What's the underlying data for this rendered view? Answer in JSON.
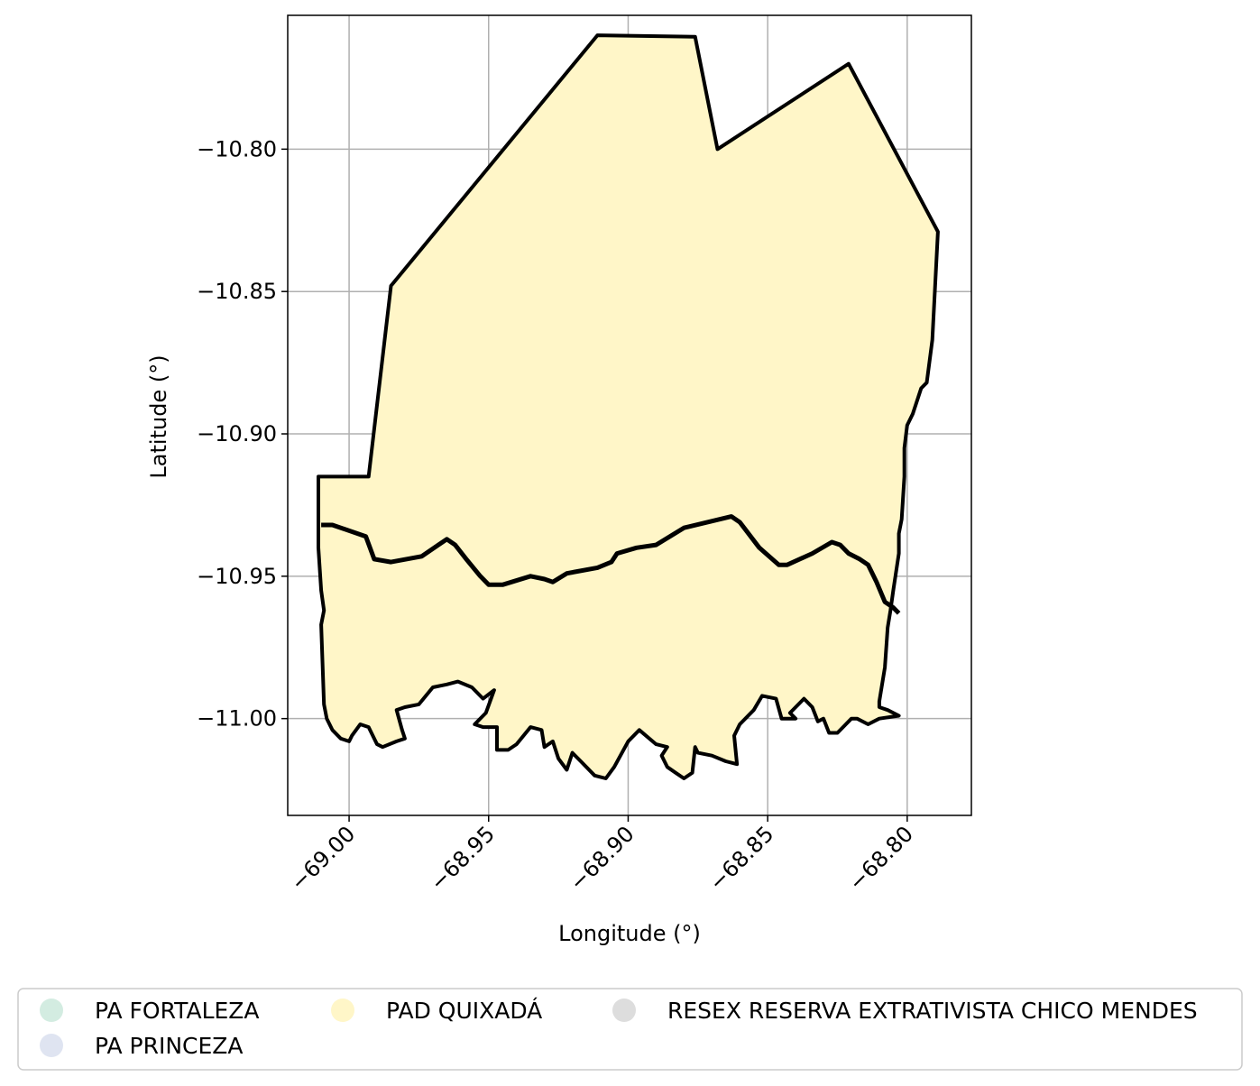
{
  "chart_data": {
    "type": "map",
    "xlabel": "Longitude (°)",
    "ylabel": "Latitude (°)",
    "xlim": [
      -69.022,
      -68.777
    ],
    "ylim": [
      -11.034,
      -10.753
    ],
    "grid": true,
    "x_ticks": [
      {
        "value": -69.0,
        "label": "−69.00"
      },
      {
        "value": -68.95,
        "label": "−68.95"
      },
      {
        "value": -68.9,
        "label": "−68.90"
      },
      {
        "value": -68.85,
        "label": "−68.85"
      },
      {
        "value": -68.8,
        "label": "−68.80"
      }
    ],
    "y_ticks": [
      {
        "value": -10.8,
        "label": "−10.80"
      },
      {
        "value": -10.85,
        "label": "−10.85"
      },
      {
        "value": -10.9,
        "label": "−10.90"
      },
      {
        "value": -10.95,
        "label": "−10.95"
      },
      {
        "value": -11.0,
        "label": "−11.00"
      }
    ],
    "legend": {
      "placement": "bottom",
      "entries": [
        {
          "label": "PA FORTALEZA",
          "color": "#d3ece1"
        },
        {
          "label": "PA PRINCEZA",
          "color": "#dfe4f1"
        },
        {
          "label": "PAD QUIXADÁ",
          "color": "#fff6c8"
        },
        {
          "label": "RESEX RESERVA EXTRATIVISTA CHICO MENDES",
          "color": "#dddddd"
        }
      ]
    },
    "features": [
      {
        "name": "PAD QUIXADÁ",
        "fill": "#fff6c8",
        "coords": [
          [
            -69.011,
            -10.915
          ],
          [
            -68.993,
            -10.915
          ],
          [
            -68.985,
            -10.848
          ],
          [
            -68.911,
            -10.76
          ],
          [
            -68.876,
            -10.7605
          ],
          [
            -68.868,
            -10.8
          ],
          [
            -68.821,
            -10.77
          ],
          [
            -68.789,
            -10.829
          ],
          [
            -68.79,
            -10.848
          ],
          [
            -68.791,
            -10.867
          ],
          [
            -68.793,
            -10.882
          ],
          [
            -68.795,
            -10.884
          ],
          [
            -68.798,
            -10.893
          ],
          [
            -68.8,
            -10.897
          ],
          [
            -68.801,
            -10.905
          ],
          [
            -68.801,
            -10.915
          ],
          [
            -68.802,
            -10.93
          ],
          [
            -68.803,
            -10.935
          ],
          [
            -68.803,
            -10.942
          ],
          [
            -68.805,
            -10.955
          ],
          [
            -68.806,
            -10.962
          ],
          [
            -68.807,
            -10.968
          ],
          [
            -68.808,
            -10.982
          ],
          [
            -68.81,
            -10.994
          ],
          [
            -68.81,
            -10.996
          ],
          [
            -68.807,
            -10.997
          ],
          [
            -68.803,
            -10.999
          ],
          [
            -68.81,
            -11.0
          ],
          [
            -68.814,
            -11.002
          ],
          [
            -68.818,
            -11.0
          ],
          [
            -68.82,
            -11.0
          ],
          [
            -68.822,
            -11.002
          ],
          [
            -68.825,
            -11.005
          ],
          [
            -68.828,
            -11.005
          ],
          [
            -68.83,
            -11.0
          ],
          [
            -68.832,
            -11.001
          ],
          [
            -68.834,
            -10.996
          ],
          [
            -68.837,
            -10.993
          ],
          [
            -68.842,
            -10.998
          ],
          [
            -68.84,
            -11.0
          ],
          [
            -68.845,
            -11.0
          ],
          [
            -68.847,
            -10.993
          ],
          [
            -68.852,
            -10.992
          ],
          [
            -68.855,
            -10.997
          ],
          [
            -68.86,
            -11.002
          ],
          [
            -68.862,
            -11.006
          ],
          [
            -68.861,
            -11.016
          ],
          [
            -68.865,
            -11.015
          ],
          [
            -68.87,
            -11.013
          ],
          [
            -68.875,
            -11.012
          ],
          [
            -68.876,
            -11.01
          ],
          [
            -68.877,
            -11.019
          ],
          [
            -68.88,
            -11.021
          ],
          [
            -68.883,
            -11.019
          ],
          [
            -68.886,
            -11.017
          ],
          [
            -68.888,
            -11.013
          ],
          [
            -68.886,
            -11.01
          ],
          [
            -68.89,
            -11.009
          ],
          [
            -68.896,
            -11.004
          ],
          [
            -68.9,
            -11.008
          ],
          [
            -68.905,
            -11.017
          ],
          [
            -68.908,
            -11.021
          ],
          [
            -68.912,
            -11.02
          ],
          [
            -68.917,
            -11.015
          ],
          [
            -68.92,
            -11.012
          ],
          [
            -68.922,
            -11.018
          ],
          [
            -68.925,
            -11.014
          ],
          [
            -68.927,
            -11.008
          ],
          [
            -68.93,
            -11.01
          ],
          [
            -68.931,
            -11.004
          ],
          [
            -68.935,
            -11.003
          ],
          [
            -68.94,
            -11.009
          ],
          [
            -68.943,
            -11.011
          ],
          [
            -68.947,
            -11.011
          ],
          [
            -68.947,
            -11.003
          ],
          [
            -68.952,
            -11.003
          ],
          [
            -68.955,
            -11.002
          ],
          [
            -68.951,
            -10.998
          ],
          [
            -68.948,
            -10.99
          ],
          [
            -68.952,
            -10.993
          ],
          [
            -68.956,
            -10.989
          ],
          [
            -68.961,
            -10.987
          ],
          [
            -68.965,
            -10.988
          ],
          [
            -68.97,
            -10.989
          ],
          [
            -68.975,
            -10.995
          ],
          [
            -68.98,
            -10.996
          ],
          [
            -68.983,
            -10.997
          ],
          [
            -68.981,
            -11.004
          ],
          [
            -68.98,
            -11.007
          ],
          [
            -68.983,
            -11.008
          ],
          [
            -68.988,
            -11.01
          ],
          [
            -68.99,
            -11.009
          ],
          [
            -68.993,
            -11.003
          ],
          [
            -68.996,
            -11.002
          ],
          [
            -68.999,
            -11.006
          ],
          [
            -69.0,
            -11.008
          ],
          [
            -69.003,
            -11.007
          ],
          [
            -69.006,
            -11.004
          ],
          [
            -69.008,
            -11.0
          ],
          [
            -69.009,
            -10.995
          ],
          [
            -69.01,
            -10.967
          ],
          [
            -69.009,
            -10.962
          ],
          [
            -69.01,
            -10.955
          ],
          [
            -69.011,
            -10.94
          ],
          [
            -69.011,
            -10.915
          ]
        ]
      }
    ],
    "lines": [
      {
        "name": "middle-boundary",
        "coords": [
          [
            -69.01,
            -10.932
          ],
          [
            -69.006,
            -10.932
          ],
          [
            -68.994,
            -10.936
          ],
          [
            -68.991,
            -10.944
          ],
          [
            -68.985,
            -10.945
          ],
          [
            -68.974,
            -10.943
          ],
          [
            -68.968,
            -10.939
          ],
          [
            -68.965,
            -10.937
          ],
          [
            -68.962,
            -10.939
          ],
          [
            -68.958,
            -10.944
          ],
          [
            -68.953,
            -10.95
          ],
          [
            -68.95,
            -10.953
          ],
          [
            -68.945,
            -10.953
          ],
          [
            -68.935,
            -10.95
          ],
          [
            -68.93,
            -10.951
          ],
          [
            -68.927,
            -10.952
          ],
          [
            -68.922,
            -10.949
          ],
          [
            -68.911,
            -10.947
          ],
          [
            -68.906,
            -10.945
          ],
          [
            -68.904,
            -10.942
          ],
          [
            -68.897,
            -10.94
          ],
          [
            -68.89,
            -10.939
          ],
          [
            -68.88,
            -10.933
          ],
          [
            -68.863,
            -10.929
          ],
          [
            -68.86,
            -10.931
          ],
          [
            -68.853,
            -10.94
          ],
          [
            -68.846,
            -10.946
          ],
          [
            -68.843,
            -10.946
          ],
          [
            -68.834,
            -10.942
          ],
          [
            -68.827,
            -10.938
          ],
          [
            -68.824,
            -10.939
          ],
          [
            -68.821,
            -10.942
          ],
          [
            -68.817,
            -10.944
          ],
          [
            -68.814,
            -10.946
          ],
          [
            -68.811,
            -10.952
          ],
          [
            -68.808,
            -10.959
          ],
          [
            -68.805,
            -10.961
          ],
          [
            -68.803,
            -10.963
          ]
        ]
      }
    ]
  }
}
